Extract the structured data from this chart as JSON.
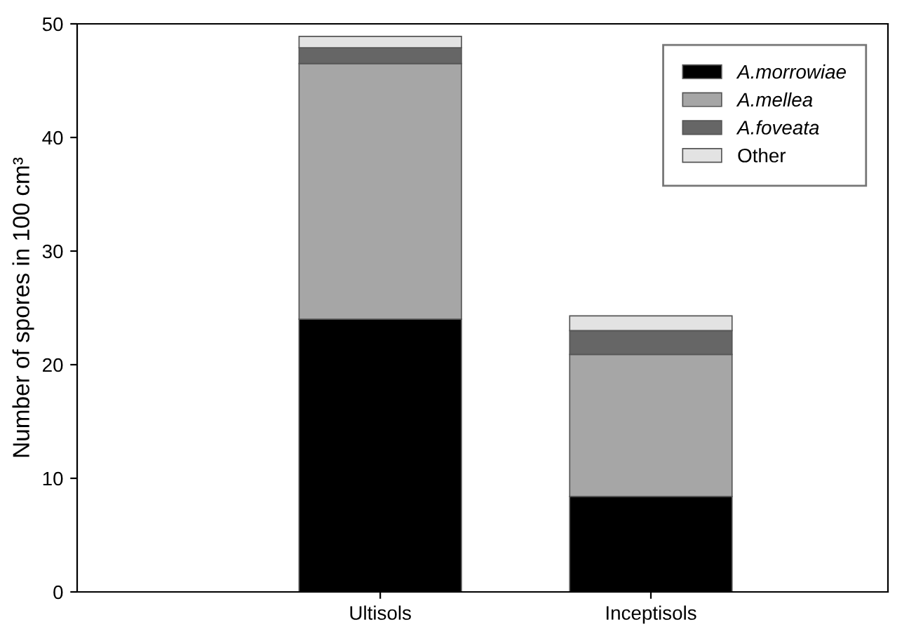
{
  "chart_data": {
    "type": "bar",
    "stacked": true,
    "ylabel": "Number of spores in 100 cm³",
    "categories": [
      "Ultisols",
      "Inceptisols"
    ],
    "series": [
      {
        "name": "A.morrowiae",
        "color": "#000000",
        "values": [
          24.0,
          8.4
        ]
      },
      {
        "name": "A.mellea",
        "color": "#a6a6a6",
        "values": [
          22.5,
          12.5
        ]
      },
      {
        "name": "A.foveata",
        "color": "#666666",
        "values": [
          1.4,
          2.1
        ]
      },
      {
        "name": "Other",
        "color": "#e3e3e3",
        "values": [
          1.0,
          1.3
        ]
      }
    ],
    "ylim": [
      0,
      50
    ],
    "yticks": [
      0,
      10,
      20,
      30,
      40,
      50
    ],
    "grid": false,
    "legend": "top right"
  }
}
